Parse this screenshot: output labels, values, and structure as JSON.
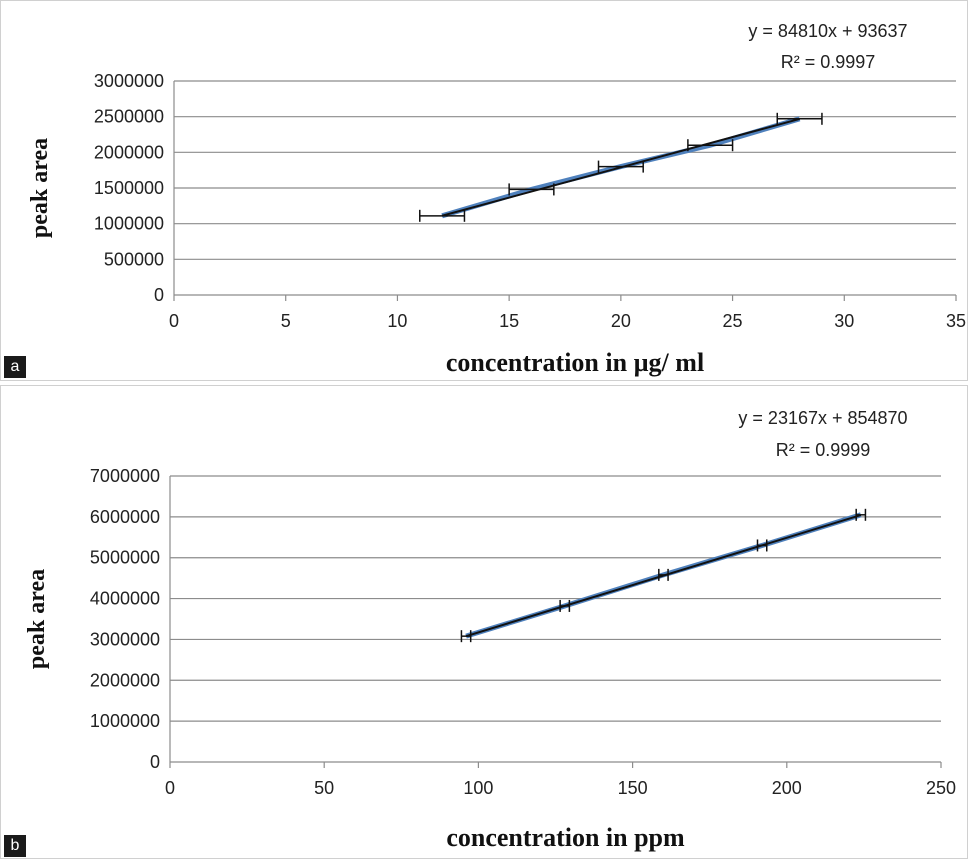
{
  "panels": [
    {
      "label": "a"
    },
    {
      "label": "b"
    }
  ],
  "chart_data": [
    {
      "type": "scatter",
      "ylabel": "peak area",
      "xlabel": "concentration in µg/ ml",
      "xlim": [
        0,
        35
      ],
      "ylim": [
        0,
        3000000
      ],
      "xticks": [
        0,
        5,
        10,
        15,
        20,
        25,
        30,
        35
      ],
      "yticks": [
        0,
        500000,
        1000000,
        1500000,
        2000000,
        2500000,
        3000000
      ],
      "grid": "horizontal",
      "series": [
        {
          "x": [
            12,
            16,
            20,
            24,
            28
          ],
          "y": [
            1110000,
            1480000,
            1800000,
            2100000,
            2470000
          ],
          "x_error": [
            1,
            1,
            1,
            1,
            1
          ]
        }
      ],
      "trendline": {
        "slope": 84810,
        "intercept": 93637
      },
      "annotations": [
        "y = 84810x + 93637",
        "R² = 0.9997"
      ],
      "colors": {
        "trendline": "#111111",
        "series": "#4f81bd"
      }
    },
    {
      "type": "scatter",
      "ylabel": "peak area",
      "xlabel": "concentration in ppm",
      "xlim": [
        0,
        250
      ],
      "ylim": [
        0,
        7000000
      ],
      "xticks": [
        0,
        50,
        100,
        150,
        200,
        250
      ],
      "yticks": [
        0,
        1000000,
        2000000,
        3000000,
        4000000,
        5000000,
        6000000,
        7000000
      ],
      "grid": "horizontal",
      "series": [
        {
          "x": [
            96,
            128,
            160,
            192,
            224
          ],
          "y": [
            3080000,
            3820000,
            4580000,
            5300000,
            6050000
          ],
          "x_error": [
            1.5,
            1.5,
            1.5,
            1.5,
            1.5
          ]
        }
      ],
      "trendline": {
        "slope": 23167,
        "intercept": 854870
      },
      "annotations": [
        "y = 23167x + 854870",
        "R² = 0.9999"
      ],
      "colors": {
        "trendline": "#111111",
        "series": "#4f81bd"
      }
    }
  ]
}
